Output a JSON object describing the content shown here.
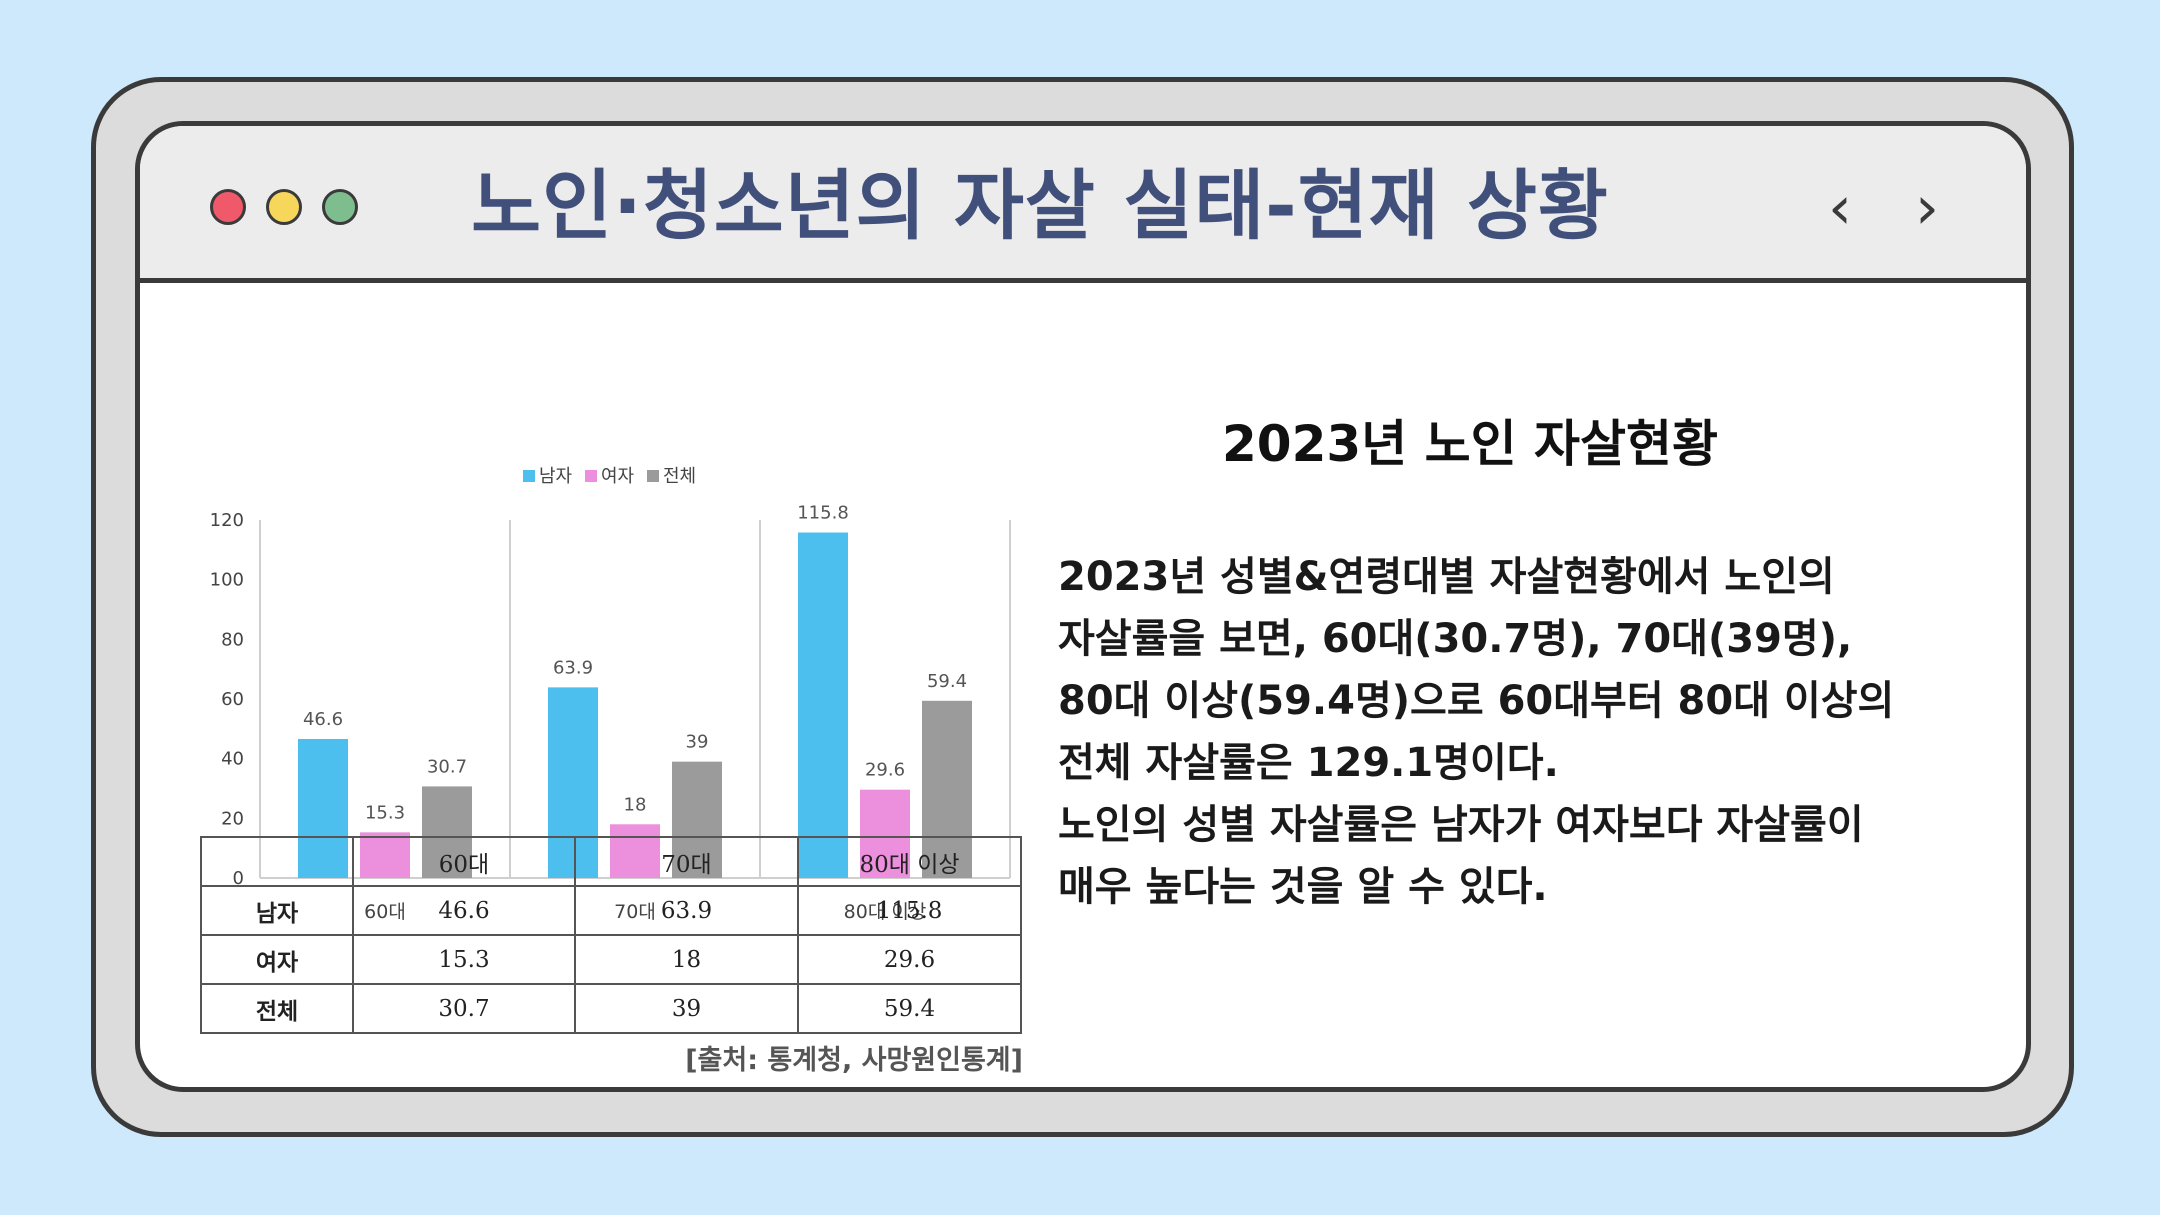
{
  "window": {
    "title": "노인·청소년의 자살 실태-현재 상황",
    "nav_prev": "‹",
    "nav_next": "›"
  },
  "chart_data": {
    "type": "bar",
    "categories": [
      "60대",
      "70대",
      "80대 이상"
    ],
    "series": [
      {
        "name": "남자",
        "values": [
          46.6,
          63.9,
          115.8
        ],
        "color": "#4cbfef"
      },
      {
        "name": "여자",
        "values": [
          15.3,
          18,
          29.6
        ],
        "color": "#ec8fdd"
      },
      {
        "name": "전체",
        "values": [
          30.7,
          39,
          59.4
        ],
        "color": "#9b9b9b"
      }
    ],
    "value_labels": [
      [
        "46.6",
        "63.9",
        "115.8"
      ],
      [
        "15.3",
        "18",
        "29.6"
      ],
      [
        "30.7",
        "39",
        "59.4"
      ]
    ],
    "yticks": [
      "0",
      "20",
      "40",
      "60",
      "80",
      "100",
      "120"
    ],
    "ylim": [
      0,
      120
    ],
    "legend_position": "top-center",
    "grid": false
  },
  "table": {
    "header": [
      "",
      "60대",
      "70대",
      "80대 이상"
    ],
    "rows": [
      [
        "남자",
        "46.6",
        "63.9",
        "115.8"
      ],
      [
        "여자",
        "15.3",
        "18",
        "29.6"
      ],
      [
        "전체",
        "30.7",
        "39",
        "59.4"
      ]
    ]
  },
  "source": "[출처: 통계청, 사망원인통계]",
  "right": {
    "heading": "2023년 노인 자살현황",
    "lines": [
      "2023년 성별&연령대별 자살현황에서 노인의",
      "자살률을 보면, 60대(30.7명), 70대(39명),",
      "80대 이상(59.4명)으로 60대부터 80대 이상의",
      "전체 자살률은 129.1명이다.",
      "노인의 성별 자살률은 남자가 여자보다 자살률이",
      "매우 높다는 것을 알 수 있다."
    ]
  }
}
